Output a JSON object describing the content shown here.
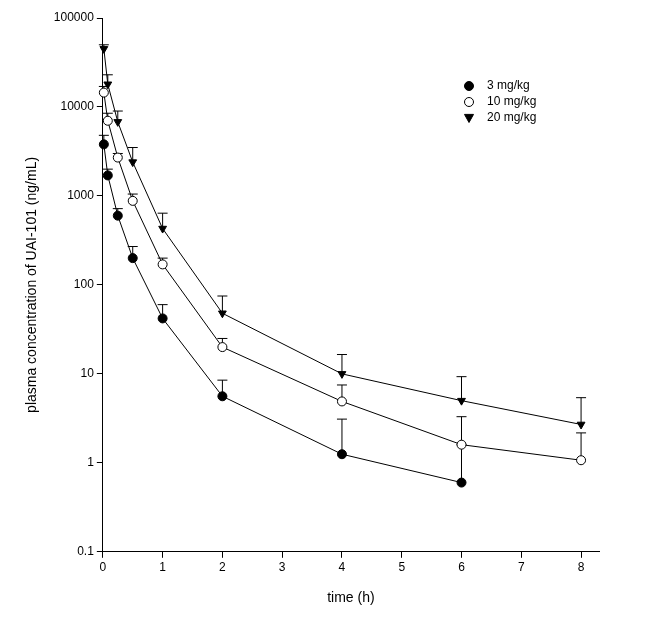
{
  "chart_data": {
    "type": "line",
    "x_label": "time (h)",
    "y_label": "plasma concentration of UAI-101 (ng/mL)",
    "log": "y",
    "grid": false,
    "legend": "upper right",
    "x": [
      0.017,
      0.083,
      0.25,
      0.5,
      1,
      2,
      4,
      6,
      8
    ],
    "xlim": [
      0,
      8.3
    ],
    "xticks": [
      0,
      1,
      2,
      3,
      4,
      5,
      6,
      7,
      8
    ],
    "ylim": [
      0.1,
      100000
    ],
    "yticks": [
      0.1,
      1,
      10,
      100,
      1000,
      10000,
      100000
    ],
    "series": [
      {
        "name": "3 mg/kg",
        "color": "#000000",
        "marker": "circle",
        "values": [
          3800,
          1700,
          600,
          200,
          42,
          5.6,
          1.25,
          0.6,
          null
        ],
        "errors": [
          1000,
          300,
          120,
          70,
          18,
          2.9,
          1.85,
          1.0,
          null
        ]
      },
      {
        "name": "10 mg/kg",
        "color": "#000000",
        "marker": "circle_open",
        "values": [
          14500,
          7000,
          2700,
          880,
          170,
          20,
          4.9,
          1.6,
          1.07
        ],
        "errors": [
          2500,
          1500,
          300,
          170,
          30,
          5,
          2.6,
          1.7,
          1.1
        ]
      },
      {
        "name": "20 mg/kg",
        "color": "#000000",
        "marker": "triangle_down",
        "values": [
          45000,
          18000,
          6800,
          2400,
          430,
          48,
          10,
          5,
          2.7
        ],
        "errors": [
          5000,
          5000,
          2200,
          1100,
          210,
          27,
          6.5,
          4.3,
          2.7
        ]
      }
    ]
  }
}
